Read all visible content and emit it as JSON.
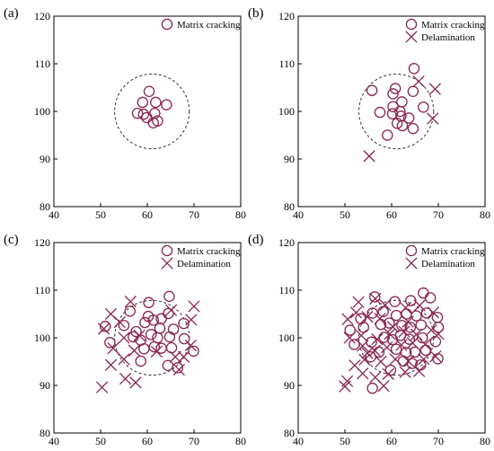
{
  "marker_color": "#8a2452",
  "circle_color": "#333333",
  "chart_data": [
    {
      "type": "scatter",
      "panel_label": "(a)",
      "xlim": [
        40,
        80
      ],
      "ylim": [
        80,
        120
      ],
      "xticks": [
        40,
        50,
        60,
        70,
        80
      ],
      "yticks": [
        80,
        90,
        100,
        110,
        120
      ],
      "legend": [
        "Matrix cracking"
      ],
      "legend_position": "top-right",
      "damage_zone": {
        "cx": 61,
        "cy": 100,
        "r": 8
      },
      "series": [
        {
          "name": "Matrix cracking",
          "marker": "circle",
          "points": [
            [
              60.4,
              104.2
            ],
            [
              59.0,
              101.9
            ],
            [
              61.8,
              101.9
            ],
            [
              64.1,
              101.4
            ],
            [
              57.9,
              99.6
            ],
            [
              59.2,
              99.4
            ],
            [
              61.6,
              99.6
            ],
            [
              59.9,
              98.7
            ],
            [
              61.3,
              97.6
            ],
            [
              62.2,
              98.0
            ]
          ]
        }
      ]
    },
    {
      "type": "scatter",
      "panel_label": "(b)",
      "xlim": [
        40,
        80
      ],
      "ylim": [
        80,
        120
      ],
      "xticks": [
        40,
        50,
        60,
        70,
        80
      ],
      "yticks": [
        80,
        90,
        100,
        110,
        120
      ],
      "legend": [
        "Matrix cracking",
        "Delamination"
      ],
      "legend_position": "top-right",
      "damage_zone": {
        "cx": 61,
        "cy": 100,
        "r": 8
      },
      "series": [
        {
          "name": "Matrix cracking",
          "marker": "circle",
          "points": [
            [
              64.8,
              109.0
            ],
            [
              55.8,
              104.4
            ],
            [
              60.8,
              104.8
            ],
            [
              60.3,
              103.7
            ],
            [
              62.2,
              102.0
            ],
            [
              64.6,
              104.2
            ],
            [
              57.5,
              99.8
            ],
            [
              60.3,
              101.0
            ],
            [
              61.8,
              100.0
            ],
            [
              60.2,
              99.5
            ],
            [
              62.0,
              99.0
            ],
            [
              61.2,
              97.5
            ],
            [
              62.3,
              97.0
            ],
            [
              66.8,
              100.9
            ],
            [
              63.7,
              98.6
            ],
            [
              59.1,
              95.0
            ],
            [
              64.6,
              96.4
            ]
          ]
        },
        {
          "name": "Delamination",
          "marker": "cross",
          "points": [
            [
              65.8,
              106.3
            ],
            [
              69.3,
              104.7
            ],
            [
              68.8,
              98.5
            ],
            [
              55.2,
              90.6
            ]
          ]
        }
      ]
    },
    {
      "type": "scatter",
      "panel_label": "(c)",
      "xlim": [
        40,
        80
      ],
      "ylim": [
        80,
        120
      ],
      "xticks": [
        40,
        50,
        60,
        70,
        80
      ],
      "yticks": [
        80,
        90,
        100,
        110,
        120
      ],
      "legend": [
        "Matrix cracking",
        "Delamination"
      ],
      "legend_position": "top-right",
      "damage_zone": {
        "cx": 61,
        "cy": 100,
        "r": 8
      },
      "series": [
        {
          "name": "Matrix cracking",
          "marker": "circle",
          "points": [
            [
              64.7,
              108.7
            ],
            [
              60.3,
              107.4
            ],
            [
              56.3,
              105.6
            ],
            [
              60.2,
              104.5
            ],
            [
              63.0,
              104.0
            ],
            [
              64.5,
              105.1
            ],
            [
              51.0,
              102.4
            ],
            [
              52.0,
              99.0
            ],
            [
              55.0,
              102.6
            ],
            [
              57.6,
              101.3
            ],
            [
              59.5,
              103.2
            ],
            [
              61.3,
              103.7
            ],
            [
              62.7,
              102.0
            ],
            [
              65.6,
              101.8
            ],
            [
              57.0,
              100.2
            ],
            [
              58.6,
              99.5
            ],
            [
              60.8,
              100.7
            ],
            [
              62.2,
              100.0
            ],
            [
              64.8,
              100.2
            ],
            [
              67.9,
              99.8
            ],
            [
              59.3,
              97.7
            ],
            [
              61.5,
              98.1
            ],
            [
              63.0,
              97.8
            ],
            [
              65.2,
              97.9
            ],
            [
              69.9,
              97.2
            ],
            [
              58.6,
              95.1
            ],
            [
              64.4,
              94.2
            ],
            [
              66.5,
              93.7
            ],
            [
              67.8,
              103.0
            ]
          ]
        },
        {
          "name": "Delamination",
          "marker": "cross",
          "points": [
            [
              56.4,
              107.6
            ],
            [
              65.1,
              105.8
            ],
            [
              70.0,
              106.6
            ],
            [
              69.4,
              103.8
            ],
            [
              50.7,
              101.9
            ],
            [
              52.2,
              105.0
            ],
            [
              54.1,
              103.3
            ],
            [
              52.7,
              97.8
            ],
            [
              55.0,
              100.0
            ],
            [
              58.3,
              100.5
            ],
            [
              55.0,
              95.5
            ],
            [
              57.2,
              97.3
            ],
            [
              62.0,
              97.1
            ],
            [
              66.0,
              96.0
            ],
            [
              67.8,
              96.0
            ],
            [
              69.3,
              98.4
            ],
            [
              52.2,
              94.3
            ],
            [
              55.3,
              91.4
            ],
            [
              57.5,
              90.6
            ],
            [
              66.8,
              93.3
            ],
            [
              50.3,
              89.6
            ]
          ]
        }
      ]
    },
    {
      "type": "scatter",
      "panel_label": "(d)",
      "xlim": [
        40,
        80
      ],
      "ylim": [
        80,
        120
      ],
      "xticks": [
        40,
        50,
        60,
        70,
        80
      ],
      "yticks": [
        80,
        90,
        100,
        110,
        120
      ],
      "legend": [
        "Matrix cracking",
        "Delamination"
      ],
      "legend_position": "top-right",
      "damage_zone": {
        "cx": 61,
        "cy": 100,
        "r": 8
      },
      "series": [
        {
          "name": "Matrix cracking",
          "marker": "circle",
          "points": [
            [
              66.8,
              109.4
            ],
            [
              68.3,
              108.4
            ],
            [
              56.4,
              108.6
            ],
            [
              60.7,
              107.6
            ],
            [
              64.1,
              107.8
            ],
            [
              53.4,
              104.0
            ],
            [
              55.9,
              105.2
            ],
            [
              58.2,
              105.5
            ],
            [
              61.0,
              104.7
            ],
            [
              63.2,
              105.0
            ],
            [
              65.3,
              104.6
            ],
            [
              67.5,
              105.2
            ],
            [
              69.8,
              104.3
            ],
            [
              51.1,
              101.6
            ],
            [
              54.0,
              102.2
            ],
            [
              57.7,
              102.8
            ],
            [
              59.5,
              103.1
            ],
            [
              62.2,
              102.6
            ],
            [
              64.0,
              102.2
            ],
            [
              66.3,
              102.7
            ],
            [
              70.0,
              102.2
            ],
            [
              52.0,
              98.6
            ],
            [
              55.7,
              99.1
            ],
            [
              58.4,
              100.1
            ],
            [
              60.2,
              99.6
            ],
            [
              61.9,
              100.5
            ],
            [
              63.8,
              99.7
            ],
            [
              66.6,
              100.0
            ],
            [
              69.4,
              99.2
            ],
            [
              57.3,
              97.0
            ],
            [
              61.0,
              97.6
            ],
            [
              63.1,
              96.9
            ],
            [
              65.0,
              97.0
            ],
            [
              67.3,
              97.4
            ],
            [
              55.5,
              96.0
            ],
            [
              62.5,
              95.1
            ],
            [
              66.2,
              94.3
            ],
            [
              69.9,
              95.6
            ],
            [
              59.8,
              93.2
            ],
            [
              55.9,
              89.4
            ],
            [
              64.4,
              94.6
            ]
          ]
        },
        {
          "name": "Delamination",
          "marker": "cross",
          "points": [
            [
              52.9,
              107.5
            ],
            [
              56.5,
              108.2
            ],
            [
              58.6,
              106.9
            ],
            [
              63.0,
              106.3
            ],
            [
              66.0,
              106.8
            ],
            [
              68.9,
              105.3
            ],
            [
              50.6,
              103.9
            ],
            [
              52.4,
              105.3
            ],
            [
              54.8,
              104.4
            ],
            [
              57.5,
              104.0
            ],
            [
              60.3,
              102.3
            ],
            [
              63.5,
              103.4
            ],
            [
              68.5,
              101.6
            ],
            [
              51.0,
              100.0
            ],
            [
              53.5,
              100.5
            ],
            [
              56.9,
              99.7
            ],
            [
              59.6,
              100.8
            ],
            [
              62.7,
              101.3
            ],
            [
              65.3,
              100.7
            ],
            [
              70.0,
              100.8
            ],
            [
              53.8,
              98.3
            ],
            [
              56.4,
              97.3
            ],
            [
              59.0,
              98.0
            ],
            [
              62.1,
              98.5
            ],
            [
              64.5,
              98.9
            ],
            [
              67.2,
              98.6
            ],
            [
              52.1,
              94.2
            ],
            [
              54.2,
              95.4
            ],
            [
              57.7,
              95.0
            ],
            [
              60.8,
              95.5
            ],
            [
              63.6,
              95.1
            ],
            [
              66.9,
              95.5
            ],
            [
              69.4,
              96.1
            ],
            [
              50.5,
              90.9
            ],
            [
              53.8,
              92.5
            ],
            [
              56.5,
              91.7
            ],
            [
              59.3,
              92.4
            ],
            [
              62.9,
              92.8
            ],
            [
              65.9,
              93.0
            ],
            [
              50.0,
              89.8
            ],
            [
              58.3,
              89.9
            ],
            [
              54.8,
              96.8
            ]
          ]
        }
      ]
    }
  ]
}
